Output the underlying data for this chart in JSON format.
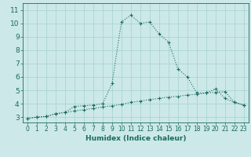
{
  "xlabel": "Humidex (Indice chaleur)",
  "bg_color": "#cce8e8",
  "grid_color": "#aad4d4",
  "line_color": "#1a6b60",
  "xlim": [
    -0.5,
    23.5
  ],
  "ylim": [
    2.6,
    11.5
  ],
  "xticks": [
    0,
    1,
    2,
    3,
    4,
    5,
    6,
    7,
    8,
    9,
    10,
    11,
    12,
    13,
    14,
    15,
    16,
    17,
    18,
    19,
    20,
    21,
    22,
    23
  ],
  "yticks": [
    3,
    4,
    5,
    6,
    7,
    8,
    9,
    10,
    11
  ],
  "curve1_x": [
    0,
    1,
    2,
    3,
    4,
    5,
    6,
    7,
    8,
    9,
    10,
    11,
    12,
    13,
    14,
    15,
    16,
    17,
    18,
    19,
    20,
    21,
    22,
    23
  ],
  "curve1_y": [
    2.9,
    3.0,
    3.05,
    3.25,
    3.35,
    3.45,
    3.55,
    3.65,
    3.75,
    3.85,
    3.95,
    4.1,
    4.2,
    4.3,
    4.4,
    4.5,
    4.55,
    4.65,
    4.7,
    4.8,
    4.85,
    4.9,
    4.1,
    3.9
  ],
  "curve2_x": [
    0,
    1,
    2,
    3,
    4,
    5,
    6,
    7,
    8,
    9,
    10,
    11,
    12,
    13,
    14,
    15,
    16,
    17,
    18,
    19,
    20,
    21,
    22,
    23
  ],
  "curve2_y": [
    2.9,
    3.0,
    3.05,
    3.25,
    3.35,
    3.8,
    3.85,
    3.9,
    4.0,
    5.5,
    10.1,
    10.6,
    10.0,
    10.1,
    9.2,
    8.6,
    6.6,
    6.0,
    4.8,
    4.8,
    5.1,
    4.4,
    4.1,
    3.9
  ],
  "xlabel_fontsize": 6.5,
  "tick_fontsize": 5.5,
  "ytick_fontsize": 6.5
}
